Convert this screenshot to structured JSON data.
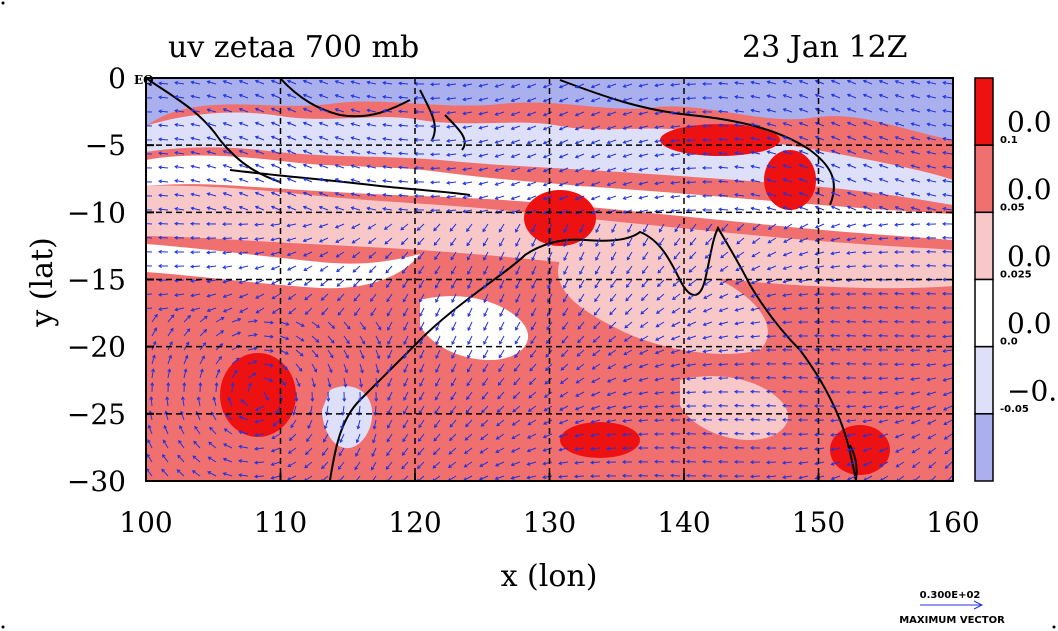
{
  "chart_data": {
    "type": "heatmap",
    "title": "uv zetaa 700 mb",
    "subtitle": "23 Jan 12Z",
    "xlabel": "x (lon)",
    "ylabel": "y (lat)",
    "xlim": [
      100,
      160
    ],
    "ylim": [
      -30,
      0
    ],
    "x_ticks": [
      "100",
      "110",
      "120",
      "130",
      "140",
      "150",
      "160"
    ],
    "y_ticks": [
      "0",
      "−5",
      "−10",
      "−15",
      "−20",
      "−25",
      "−30"
    ],
    "y_top_suffix": "EQ",
    "grid": true,
    "colorbar": {
      "levels": [
        {
          "label": "0.1",
          "big": "0.0",
          "color": "#ee1111"
        },
        {
          "label": "0.05",
          "big": "0.0",
          "color": "#f07070"
        },
        {
          "label": "0.025",
          "big": "0.0",
          "color": "#f8c8c8"
        },
        {
          "label": "0.0",
          "big": "0.0",
          "color": "#ffffff"
        },
        {
          "label": "-0.05",
          "big": "−0.",
          "color": "#dde0f8"
        },
        {
          "label": "",
          "big": "",
          "color": "#aab0ee"
        }
      ]
    },
    "vector_legend": {
      "value": "0.300E+02",
      "caption": "MAXIMUM VECTOR",
      "color": "#2233dd"
    },
    "colors": {
      "strong_pos": "#ee1111",
      "pos": "#f07070",
      "weak_pos": "#f8c8c8",
      "neg": "#dde0f8",
      "strong_neg": "#aab0ee",
      "vector": "#2233dd",
      "coast": "#000000"
    }
  }
}
